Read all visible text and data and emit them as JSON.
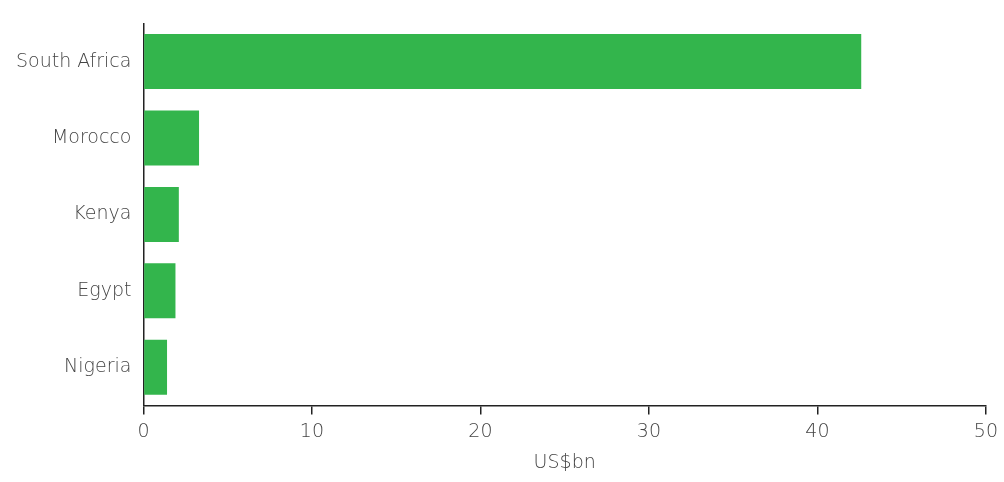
{
  "chart_data": {
    "type": "bar",
    "orientation": "horizontal",
    "categories": [
      "South Africa",
      "Morocco",
      "Kenya",
      "Egypt",
      "Nigeria"
    ],
    "values": [
      42.6,
      3.3,
      2.1,
      1.9,
      1.4
    ],
    "color": "#33b54c",
    "xlabel": "US$bn",
    "xlim": [
      0,
      50
    ],
    "xticks": [
      0,
      10,
      20,
      30,
      40,
      50
    ],
    "grid": false,
    "legend": false
  }
}
